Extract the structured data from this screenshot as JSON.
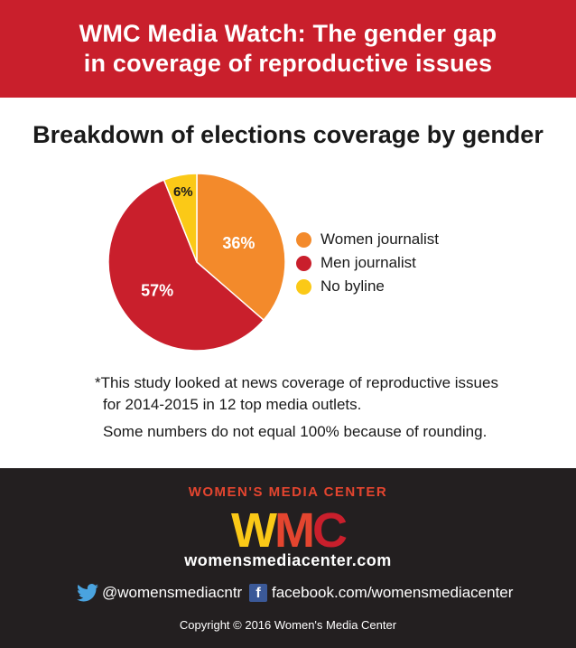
{
  "header": {
    "line1": "WMC Media Watch: The gender gap",
    "line2": "in coverage of reproductive issues"
  },
  "chart_data": {
    "type": "pie",
    "title": "Breakdown of elections coverage by gender",
    "slices": [
      {
        "name": "Women journalist",
        "value": 36,
        "label": "36%",
        "color": "#f38a2b"
      },
      {
        "name": "Men journalist",
        "value": 57,
        "label": "57%",
        "color": "#c91f2c"
      },
      {
        "name": "No byline",
        "value": 6,
        "label": "6%",
        "color": "#fbc917"
      }
    ],
    "legend_position": "right"
  },
  "notes": {
    "line1": "*This study looked at news coverage of reproductive issues",
    "line2": "for 2014-2015 in 12 top media outlets.",
    "line3": "Some numbers do not equal 100% because of rounding."
  },
  "footer": {
    "org_name": "WOMEN'S MEDIA CENTER",
    "logo_letters": [
      "W",
      "M",
      "C"
    ],
    "logo_colors": [
      "#fbc917",
      "#e4452f",
      "#c91f2c"
    ],
    "website": "womensmediacenter.com",
    "twitter_icon": "twitter-bird-icon",
    "twitter_handle": "@womensmediacntr",
    "facebook_icon": "facebook-f-icon",
    "facebook_letter": "f",
    "facebook_url": "facebook.com/womensmediacenter",
    "copyright": "Copyright © 2016 Women's Media Center"
  }
}
